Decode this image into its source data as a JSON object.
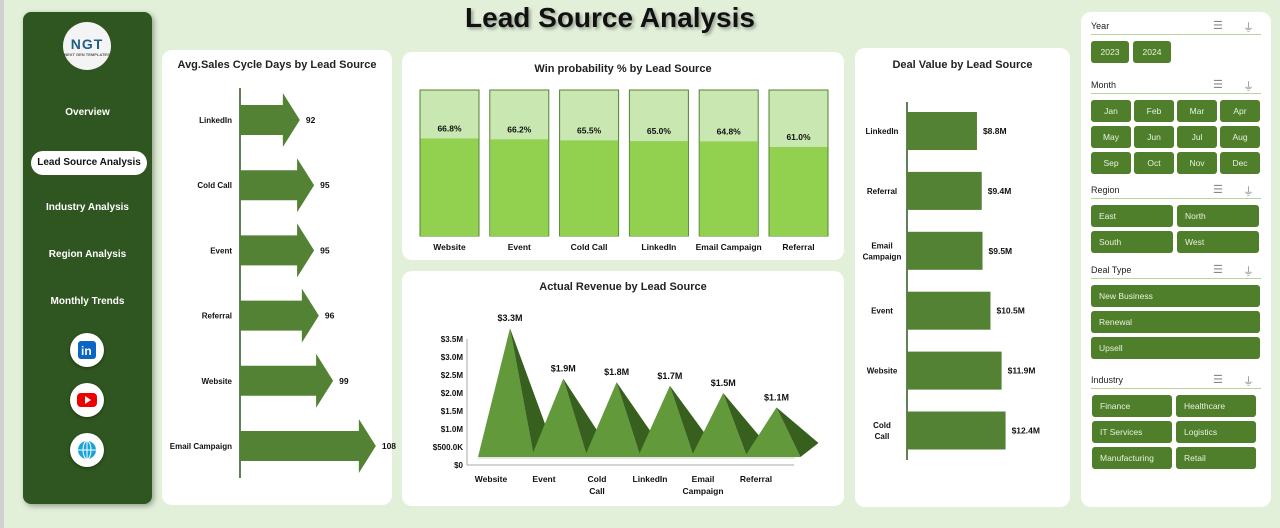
{
  "title": "Lead Source Analysis",
  "sidebar": {
    "logo": "NGT",
    "logo_sub": "NEXT GEN TEMPLATES",
    "items": [
      "Overview",
      "Lead Source Analysis",
      "Industry  Analysis",
      "Region Analysis",
      "Monthly Trends"
    ],
    "active": 1,
    "social": [
      "linkedin-icon",
      "youtube-icon",
      "globe-icon"
    ]
  },
  "colors": {
    "dark": "#2f5520",
    "bar": "#548235",
    "light_bar": "#c9e7b0",
    "fill_bar": "#92d050"
  },
  "chart_data": [
    {
      "type": "bar",
      "orientation": "horizontal",
      "title": "Avg.Sales Cycle Days by Lead Source",
      "categories": [
        "LinkedIn",
        "Cold Call",
        "Event",
        "Referral",
        "Website",
        "Email Campaign"
      ],
      "values": [
        92,
        95,
        95,
        96,
        99,
        108
      ],
      "labels": [
        "92",
        "95",
        "95",
        "96",
        "99",
        "108"
      ]
    },
    {
      "type": "bar",
      "title": "Win probability % by Lead Source",
      "categories": [
        "Website",
        "Event",
        "Cold Call",
        "LinkedIn",
        "Email Campaign",
        "Referral"
      ],
      "values": [
        66.8,
        66.2,
        65.5,
        65.0,
        64.8,
        61.0
      ],
      "labels": [
        "66.8%",
        "66.2%",
        "65.5%",
        "65.0%",
        "64.8%",
        "61.0%"
      ],
      "ylim": [
        0,
        100
      ]
    },
    {
      "type": "bar",
      "style": "pyramid",
      "title": "Actual Revenue by Lead Source",
      "categories": [
        "Website",
        "Event",
        "Cold Call",
        "LinkedIn",
        "Email Campaign",
        "Referral"
      ],
      "values": [
        3.3,
        1.9,
        1.8,
        1.7,
        1.5,
        1.1
      ],
      "labels": [
        "$3.3M",
        "$1.9M",
        "$1.8M",
        "$1.7M",
        "$1.5M",
        "$1.1M"
      ],
      "yticks": [
        "$0",
        "$500.0K",
        "$1.0M",
        "$1.5M",
        "$2.0M",
        "$2.5M",
        "$3.0M",
        "$3.5M"
      ],
      "ylim": [
        0,
        3.5
      ]
    },
    {
      "type": "bar",
      "orientation": "horizontal",
      "title": "Deal Value by Lead Source",
      "categories": [
        "LinkedIn",
        "Referral",
        "Email Campaign",
        "Event",
        "Website",
        "Cold Call"
      ],
      "values": [
        8.8,
        9.4,
        9.5,
        10.5,
        11.9,
        12.4
      ],
      "labels": [
        "$8.8M",
        "$9.4M",
        "$9.5M",
        "$10.5M",
        "$11.9M",
        "$12.4M"
      ]
    }
  ],
  "filters": [
    {
      "name": "Year",
      "cols": 2,
      "items": [
        "2023",
        "2024"
      ]
    },
    {
      "name": "Month",
      "cols": 4,
      "items": [
        "Jan",
        "Feb",
        "Mar",
        "Apr",
        "May",
        "Jun",
        "Jul",
        "Aug",
        "Sep",
        "Oct",
        "Nov",
        "Dec"
      ]
    },
    {
      "name": "Region",
      "cols": 2,
      "items": [
        "East",
        "North",
        "South",
        "West"
      ]
    },
    {
      "name": "Deal Type",
      "cols": 1,
      "items": [
        "New Business",
        "Renewal",
        "Upsell"
      ]
    },
    {
      "name": "Industry",
      "cols": 2,
      "items": [
        "Finance",
        "Healthcare",
        "IT Services",
        "Logistics",
        "Manufacturing",
        "Retail"
      ]
    }
  ]
}
